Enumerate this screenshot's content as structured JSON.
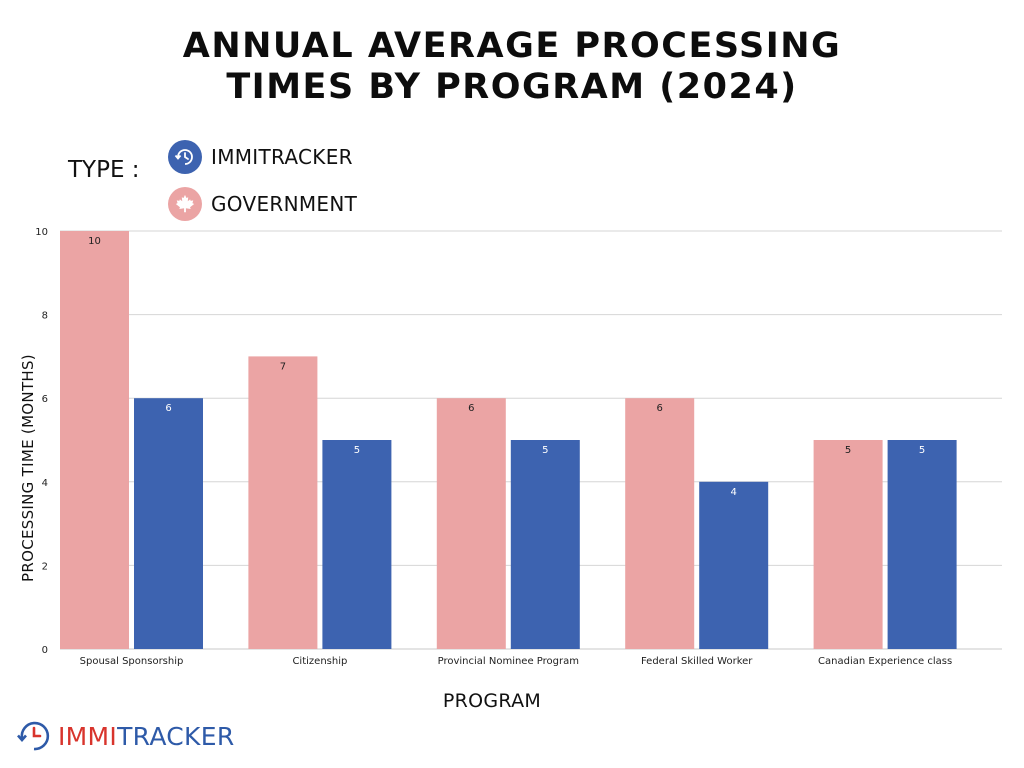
{
  "title": {
    "line1": "ANNUAL AVERAGE PROCESSING",
    "line2": "TIMES BY PROGRAM (2024)"
  },
  "legend": {
    "type_label": "TYPE :",
    "items": [
      {
        "label": "IMMITRACKER",
        "icon": "clock-icon",
        "color": "#3d63b0"
      },
      {
        "label": "GOVERNMENT",
        "icon": "maple-leaf-icon",
        "color": "#eba4a4"
      }
    ]
  },
  "brand": {
    "prefix": "IMMI",
    "suffix": "TRACKER",
    "prefix_color": "#d8342c",
    "suffix_color": "#2e5aa8"
  },
  "chart_data": {
    "type": "bar",
    "title": "ANNUAL AVERAGE PROCESSING TIMES BY PROGRAM (2024)",
    "xlabel": "PROGRAM",
    "ylabel": "PROCESSING TIME (MONTHS)",
    "ylim": [
      0,
      10
    ],
    "yticks": [
      0,
      2,
      4,
      6,
      8,
      10
    ],
    "grid": true,
    "categories": [
      "Spousal Sponsorship",
      "Citizenship",
      "Provincial Nominee Program",
      "Federal Skilled Worker",
      "Canadian Experience class"
    ],
    "series": [
      {
        "name": "GOVERNMENT",
        "color": "#eba4a4",
        "label_color": "#222222",
        "values": [
          10,
          7,
          6,
          6,
          5
        ]
      },
      {
        "name": "IMMITRACKER",
        "color": "#3d63b0",
        "label_color": "#ffffff",
        "values": [
          6,
          5,
          5,
          4,
          5
        ]
      }
    ]
  }
}
